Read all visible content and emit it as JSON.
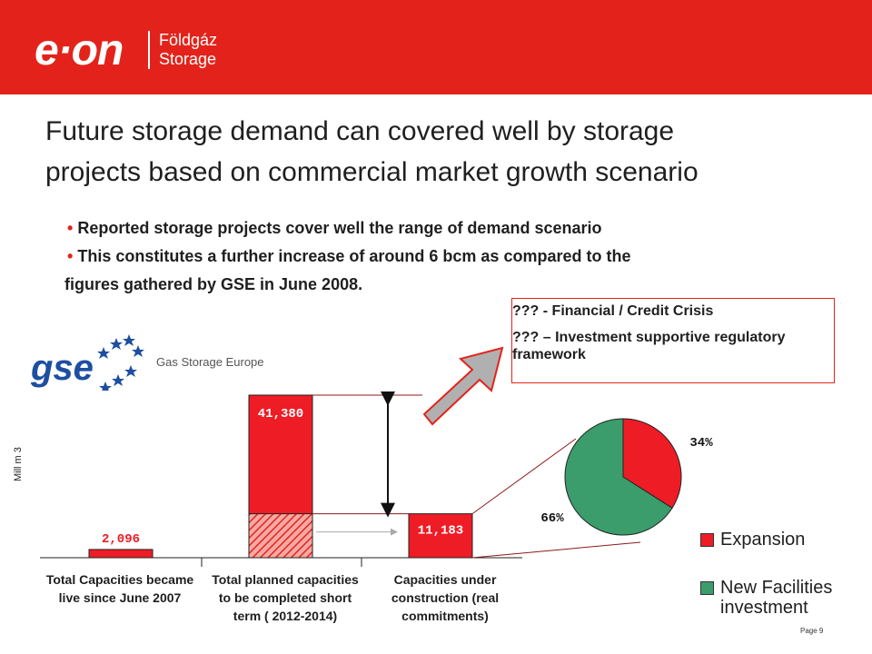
{
  "header": {
    "logo_text": "e·on",
    "logo_sub1": "Földgáz",
    "logo_sub2": "Storage"
  },
  "title_line1": "Future storage demand can covered well by storage",
  "title_line2": "projects based on commercial market growth scenario",
  "bullets": [
    "Reported storage projects cover well the range of demand scenario",
    "This constitutes a further increase of around 6 bcm as compared to the",
    "figures gathered by GSE in June 2008."
  ],
  "bullet_glyph": "•",
  "callout": {
    "line1": "??? - Financial / Credit Crisis",
    "line2": "??? – Investment supportive regulatory framework"
  },
  "gse": {
    "logo_text": "gse",
    "name": "Gas Storage Europe"
  },
  "page": "Page 9",
  "colors": {
    "brand_red": "#e3231b",
    "bar_red": "#ee1c25",
    "pie_green": "#3a9d6b"
  },
  "chart_data": [
    {
      "type": "bar",
      "ylabel": "Mill m 3",
      "categories": [
        [
          "Total Capacities became",
          "live since June 2007"
        ],
        [
          "Total planned capacities",
          "to be completed short",
          "term ( 2012-2014)"
        ],
        [
          "Capacities under",
          "construction (real",
          "commitments)"
        ]
      ],
      "values": [
        2096,
        41380,
        11183
      ],
      "labels": [
        "2,096",
        "41,380",
        "11,183"
      ],
      "hatched_segment_of_second_bar": 11183
    },
    {
      "type": "pie",
      "slices": [
        {
          "name": "Expansion",
          "value": 34,
          "label": "34%",
          "color": "#ee1c25"
        },
        {
          "name": "New Facilities investment",
          "value": 66,
          "label": "66%",
          "color": "#3a9d6b"
        }
      ],
      "legend": [
        "Expansion",
        "New Facilities investment"
      ],
      "legend_lines": [
        [
          "Expansion"
        ],
        [
          "New Facilities",
          "investment"
        ]
      ]
    }
  ]
}
